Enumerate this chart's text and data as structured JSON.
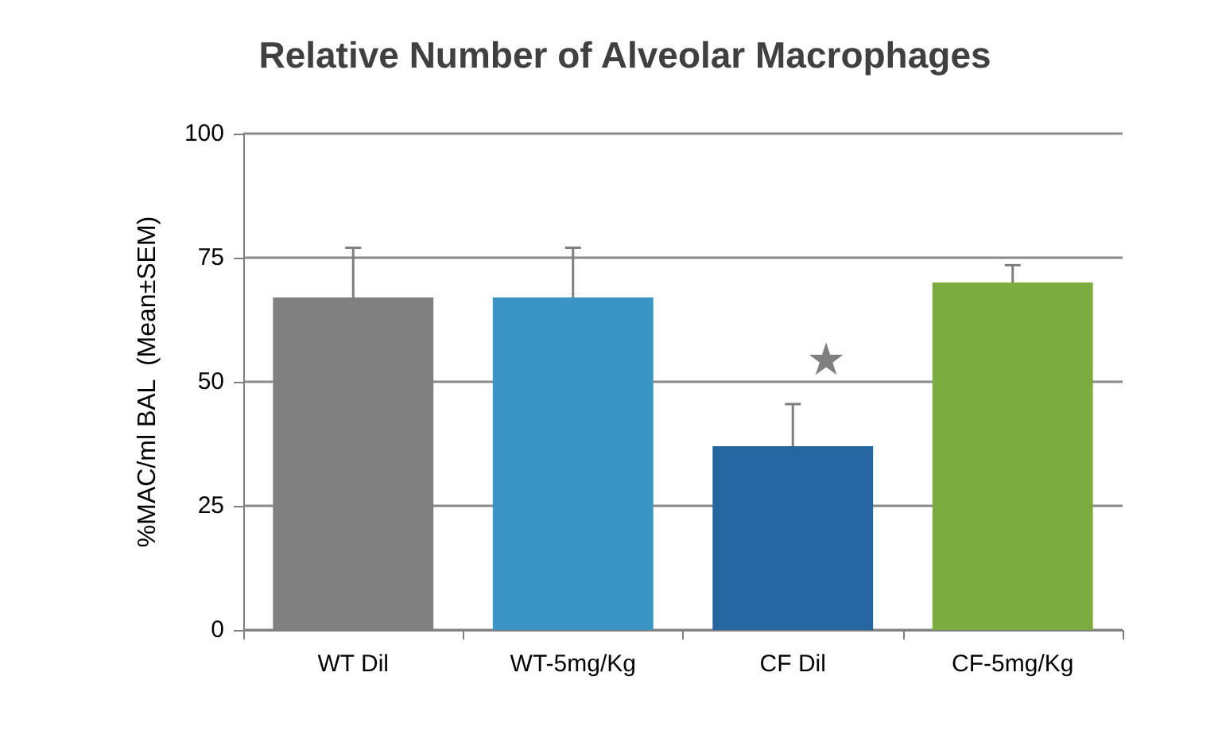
{
  "chart_data": {
    "type": "bar",
    "title": "Relative Number of Alveolar Macrophages",
    "ylabel": "%MAC/ml BAL  (Mean±SEM)",
    "categories": [
      "WT Dil",
      "WT-5mg/Kg",
      "CF Dil",
      "CF-5mg/Kg"
    ],
    "values": [
      67,
      67,
      37,
      70
    ],
    "colors": [
      "#808080",
      "#3a95c4",
      "#2467a0",
      "#7aac3e"
    ],
    "errors": [
      10,
      10,
      8.5,
      3.5
    ],
    "ylim": [
      0,
      100
    ],
    "yticks": [
      0,
      25,
      50,
      75,
      100
    ],
    "grid": "y",
    "annotations": [
      "★"
    ]
  }
}
